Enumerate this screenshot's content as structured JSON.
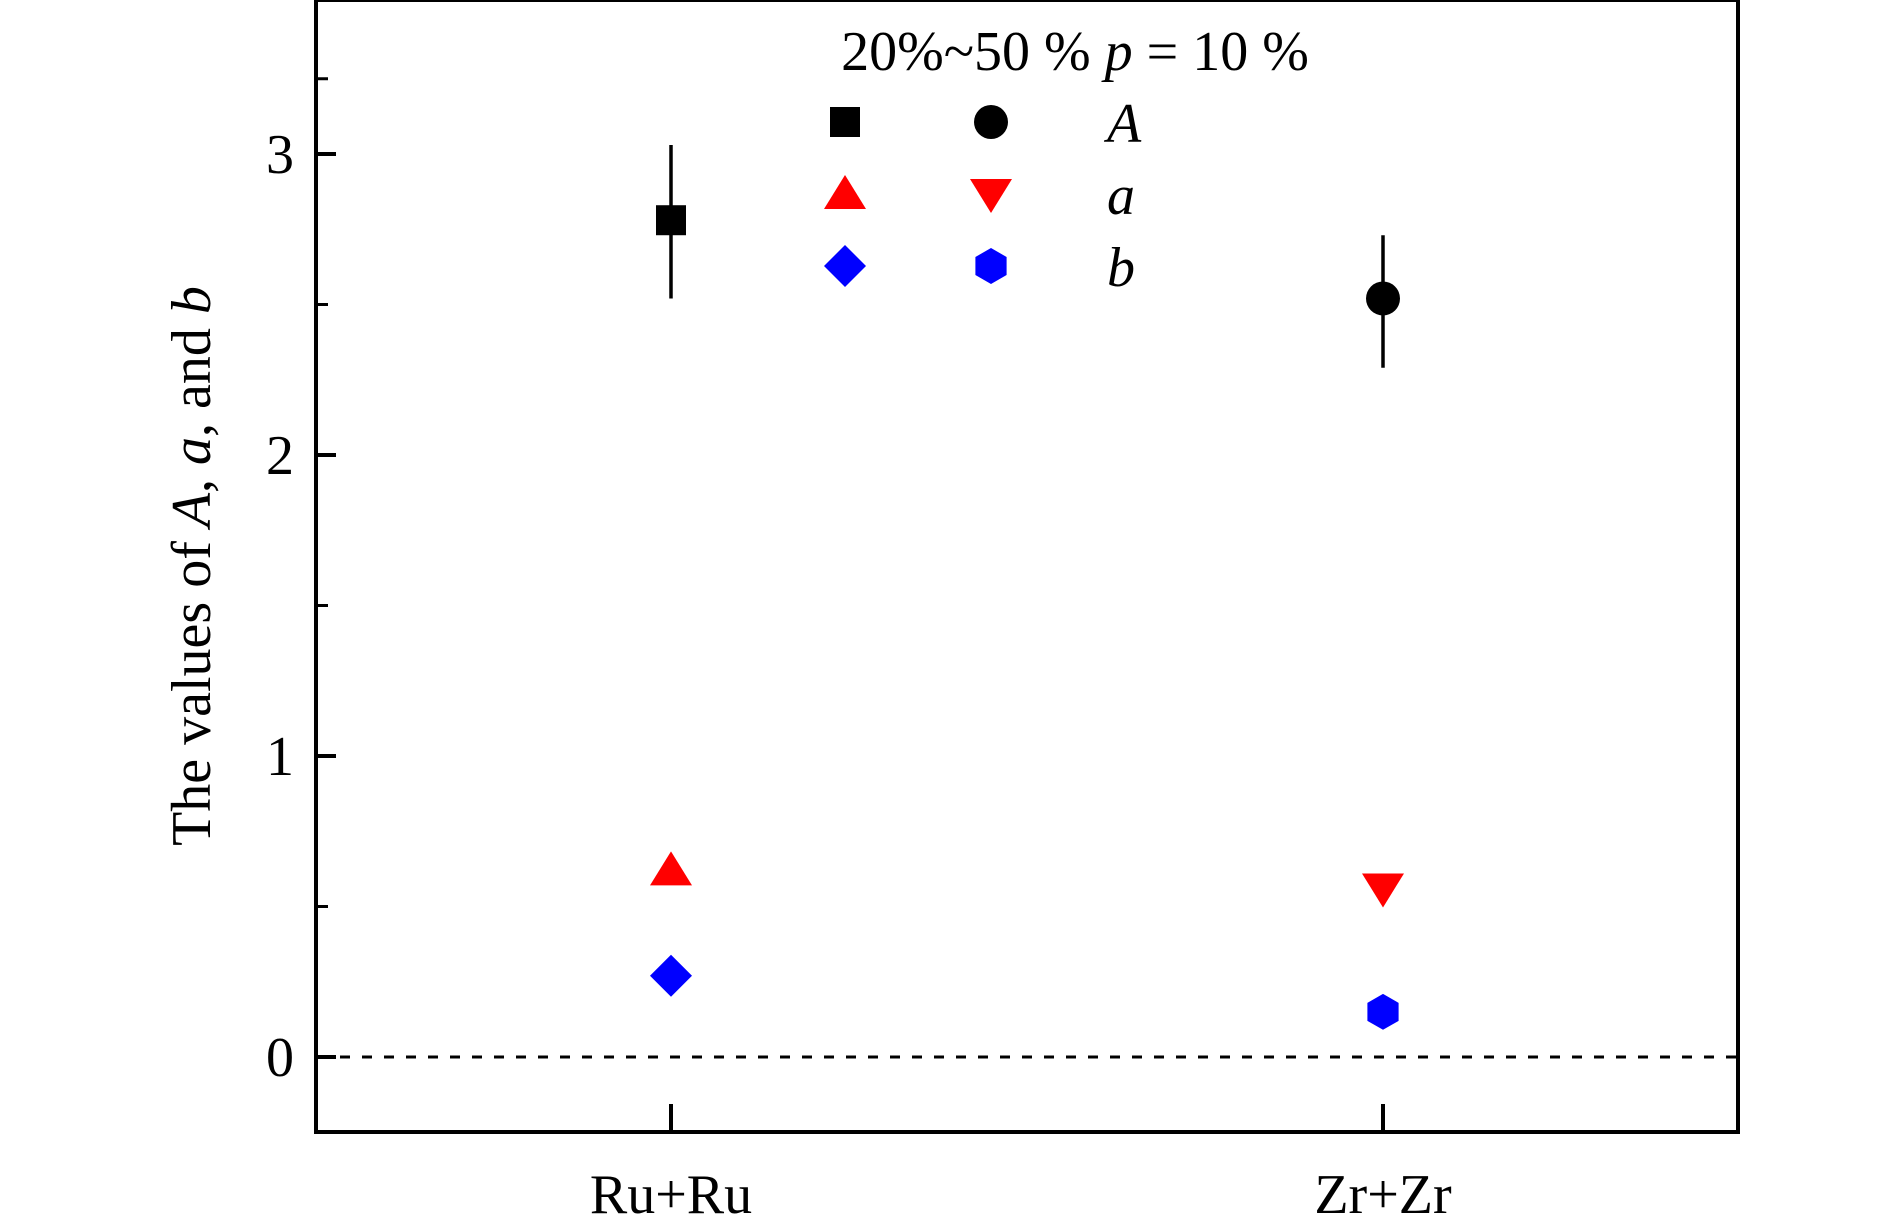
{
  "chart_data": {
    "type": "scatter",
    "categories": [
      "Ru+Ru",
      "Zr+Zr"
    ],
    "ylabel": {
      "parts": [
        {
          "text": "The values of ",
          "italic": false
        },
        {
          "text": "A",
          "italic": true
        },
        {
          "text": ", ",
          "italic": false
        },
        {
          "text": "a",
          "italic": true
        },
        {
          "text": ", and ",
          "italic": false
        },
        {
          "text": "b",
          "italic": true
        }
      ]
    },
    "ylim": [
      -0.25,
      3.5
    ],
    "yticks": [
      0,
      1,
      2,
      3
    ],
    "yticks_minor": [
      0.5,
      1.5,
      2.5,
      3.25
    ],
    "reference_line": {
      "y": 0,
      "style": "dashed",
      "color": "#000000"
    },
    "legend": {
      "title": {
        "pre": "20%~50 % ",
        "var": "p",
        "post": " = 10 %"
      },
      "position": "top-center",
      "rows": [
        {
          "label": "A",
          "markers": [
            "square",
            "circle"
          ],
          "color": "#000000"
        },
        {
          "label": "a",
          "markers": [
            "triangle-up",
            "triangle-down"
          ],
          "color": "#ff0000"
        },
        {
          "label": "b",
          "markers": [
            "diamond",
            "hexagon"
          ],
          "color": "#0000ff"
        }
      ]
    },
    "series": [
      {
        "name": "A",
        "category": "Ru+Ru",
        "marker": "square",
        "color": "#000000",
        "y": 2.78,
        "yerr_low": 2.52,
        "yerr_high": 3.03
      },
      {
        "name": "a",
        "category": "Ru+Ru",
        "marker": "triangle-up",
        "color": "#ff0000",
        "y": 0.62
      },
      {
        "name": "b",
        "category": "Ru+Ru",
        "marker": "diamond",
        "color": "#0000ff",
        "y": 0.27
      },
      {
        "name": "A",
        "category": "Zr+Zr",
        "marker": "circle",
        "color": "#000000",
        "y": 2.52,
        "yerr_low": 2.29,
        "yerr_high": 2.73
      },
      {
        "name": "a",
        "category": "Zr+Zr",
        "marker": "triangle-down",
        "color": "#ff0000",
        "y": 0.56
      },
      {
        "name": "b",
        "category": "Zr+Zr",
        "marker": "hexagon",
        "color": "#0000ff",
        "y": 0.15
      }
    ]
  }
}
